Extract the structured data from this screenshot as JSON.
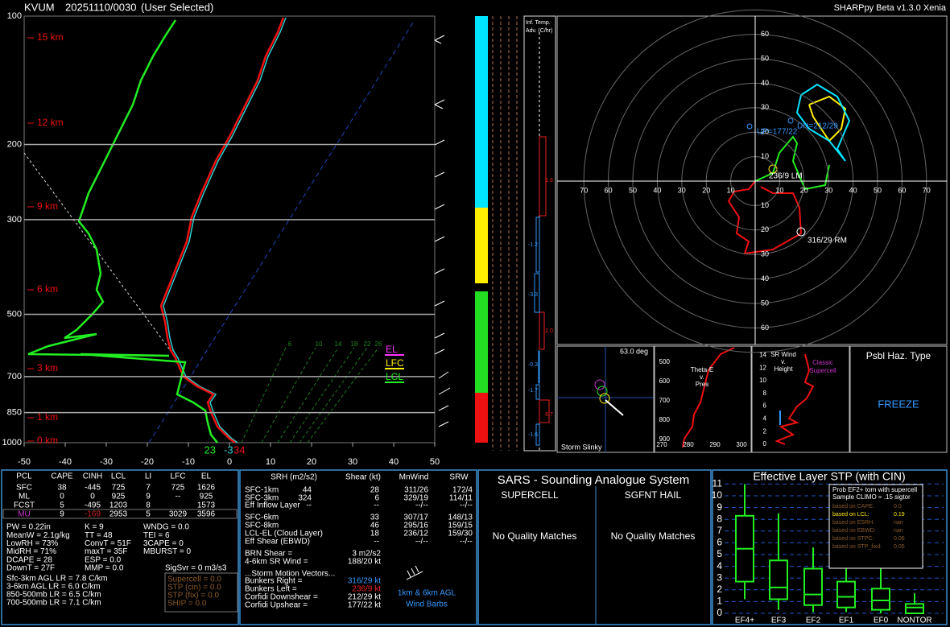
{
  "header": {
    "station": "KVUM",
    "date": "20251110/0030",
    "mode": "(User Selected)",
    "version": "SHARPpy Beta v1.3.0 Xenia"
  },
  "skewt": {
    "pressures": [
      100,
      200,
      300,
      500,
      700,
      850,
      1000
    ],
    "heights": [
      "15 km",
      "12 km",
      "9 km",
      "6 km",
      "3 km",
      "1 km",
      "0 km"
    ],
    "temps": [
      -50,
      -40,
      -30,
      -20,
      -10,
      0,
      10,
      20,
      30,
      40,
      50
    ],
    "mixing_ratios": [
      6,
      10,
      14,
      18,
      22,
      26
    ],
    "parcel_levels": [
      "EL",
      "LFC",
      "LCL"
    ],
    "sfc_dewpoint": 23,
    "sfc_wetbulb": -3,
    "sfc_temp": 34
  },
  "advection": {
    "title": [
      "Inf. Temp.",
      "Adv. (C/hr)"
    ],
    "labels": [
      "1.6",
      "-1.2",
      "-3.3",
      "2.0",
      "-0.3",
      "-1.7",
      "6.7",
      "-1.6"
    ]
  },
  "hodograph": {
    "north": [
      60,
      50,
      40,
      30,
      20,
      10
    ],
    "south": [
      10,
      20,
      30,
      40,
      50,
      60
    ],
    "west": [
      70,
      60,
      50,
      40,
      30,
      20,
      10
    ],
    "east": [
      10,
      20,
      30,
      40,
      50,
      60,
      70
    ],
    "left_mover": "236/9 LM",
    "right_mover": "316/29 RM",
    "upshear": "UP=177/22",
    "downshear": "DN=212/29"
  },
  "slinky": {
    "angle": "63.0 deg",
    "title": "Storm Slinky"
  },
  "thetae": {
    "title": [
      "Theta-E",
      "v.",
      "Pres"
    ],
    "pressures": [
      500,
      600,
      700,
      800,
      900
    ],
    "thetas": [
      270,
      280,
      290,
      300
    ]
  },
  "srwind": {
    "title": [
      "SR Wind",
      "v.",
      "Height"
    ],
    "note": [
      "Classic",
      "Supercell"
    ],
    "heights": [
      14,
      12,
      10,
      8,
      6,
      4,
      2,
      0
    ]
  },
  "hazard": {
    "title": "Psbl Haz. Type",
    "type": "FREEZE"
  },
  "parcels": {
    "headers": [
      "PCL",
      "CAPE",
      "CINH",
      "LCL",
      "LI",
      "LFC",
      "EL"
    ],
    "rows": [
      {
        "pcl": "SFC",
        "cape": 38,
        "cinh": -445,
        "lcl": 725,
        "li": 7,
        "lfc": 725,
        "el": 1626
      },
      {
        "pcl": "ML",
        "cape": 0,
        "cinh": 0,
        "lcl": 925,
        "li": 9,
        "lfc": "--",
        "el": 925
      },
      {
        "pcl": "FCST",
        "cape": 5,
        "cinh": -495,
        "lcl": 1203,
        "li": 8,
        "el": 1573
      },
      {
        "pcl": "MU",
        "cape": 9,
        "cinh": -169,
        "lcl": 2953,
        "li": 5,
        "lfc": 3029,
        "el": 3596
      }
    ]
  },
  "indices": {
    "col1": [
      "PW = 0.22in",
      "MeanW = 2.1g/kg",
      "LowRH = 73%",
      "MidRH = 71%",
      "DCAPE = 28",
      "DownT = 27F"
    ],
    "col2": [
      "K = 9",
      "TT = 48",
      "ConvT = 51F",
      "maxT = 35F",
      "ESP = 0.0",
      "MMP = 0.0"
    ],
    "col3": [
      "WNDG = 0.0",
      "TEI = 6",
      "3CAPE = 0",
      "MBURST = 0"
    ],
    "sigsvr": "SigSvr = 0 m3/s3",
    "lapse_rates": [
      "Sfc-3km AGL LR = 7.8 C/km",
      "3-6km AGL LR = 6.0 C/km",
      "850-500mb LR = 6.5 C/km",
      "700-500mb LR = 7.1 C/km"
    ],
    "severe": [
      "Supercell = 0.0",
      "STP (cin) = 0.0",
      "STP (fix) = 0.0",
      "SHIP = 0.0"
    ]
  },
  "kinematics": {
    "headers": [
      "SRH (m2/s2)",
      "Shear (kt)",
      "MnWind",
      "SRW"
    ],
    "rows": [
      {
        "layer": "SFC-1km",
        "srh": 44,
        "shear": 28,
        "mnwind": "311/26",
        "srw": "172/4"
      },
      {
        "layer": "SFC-3km",
        "srh": 324,
        "shear": 6,
        "mnwind": "329/19",
        "srw": "114/11"
      },
      {
        "layer": "Eff Inflow Layer",
        "srh": "--",
        "shear": "--",
        "mnwind": "--/--",
        "srw": "--/--"
      },
      {
        "layer": "SFC-6km",
        "shear": 33,
        "mnwind": "307/17",
        "srw": "148/13"
      },
      {
        "layer": "SFC-8km",
        "shear": 46,
        "mnwind": "295/16",
        "srw": "159/15"
      },
      {
        "layer": "LCL-EL (Cloud Layer)",
        "shear": 18,
        "mnwind": "236/12",
        "srw": "159/30"
      },
      {
        "layer": "Eff Shear (EBWD)",
        "shear": "--",
        "mnwind": "--/--",
        "srw": "--/--"
      }
    ],
    "extras": [
      [
        "BRN Shear =",
        "3 m2/s2"
      ],
      [
        "4-6km SR Wind =",
        "188/20 kt"
      ]
    ],
    "motion_title": "...Storm Motion Vectors...",
    "motions": [
      [
        "Bunkers Right =",
        "316/29 kt"
      ],
      [
        "Bunkers Left =",
        "236/9 kt"
      ],
      [
        "Corfidi Downshear =",
        "212/29 kt"
      ],
      [
        "Corfidi Upshear =",
        "177/22 kt"
      ]
    ],
    "barb_note": [
      "1km & 6km AGL",
      "Wind Barbs"
    ]
  },
  "sars": {
    "title": "SARS - Sounding Analogue System",
    "supercell": "SUPERCELL",
    "hail": "SGFNT HAIL",
    "supercell_result": "No Quality Matches",
    "hail_result": "No Quality Matches"
  },
  "stp": {
    "title": "Effective Layer STP (with CIN)",
    "yticks": [
      0,
      1,
      2,
      3,
      4,
      5,
      6,
      7,
      8,
      9,
      10,
      11
    ],
    "categories": [
      "EF4+",
      "EF3",
      "EF2",
      "EF1",
      "EF0",
      "NONTOR"
    ],
    "boxes": [
      {
        "low": 1.2,
        "q1": 2.7,
        "median": 5.5,
        "q3": 8.3,
        "high": 11
      },
      {
        "low": 0.3,
        "q1": 1.2,
        "median": 2.2,
        "q3": 4.5,
        "high": 8.5
      },
      {
        "low": 0.1,
        "q1": 0.7,
        "median": 1.6,
        "q3": 3.8,
        "high": 5.6
      },
      {
        "low": 0.1,
        "q1": 0.5,
        "median": 1.4,
        "q3": 2.7,
        "high": 4.5
      },
      {
        "low": 0,
        "q1": 0.3,
        "median": 1.1,
        "q3": 2.1,
        "high": 3.8
      },
      {
        "low": 0,
        "q1": 0,
        "median": 0.5,
        "q3": 0.8,
        "high": 1.7
      }
    ],
    "prob_title": [
      "Prob EF2+ torn with supercell",
      "Sample CLIMO = .15 sigtor"
    ],
    "prob_rows": [
      [
        "based on CAPE:",
        "0.0"
      ],
      [
        "based on LCL:",
        "0.19"
      ],
      [
        "based on ESRH:",
        "nan"
      ],
      [
        "based on EBWD:",
        "nan"
      ],
      [
        "based on STPC:",
        "0.06"
      ],
      [
        "based on STP_fixd:",
        "0.05"
      ]
    ]
  }
}
